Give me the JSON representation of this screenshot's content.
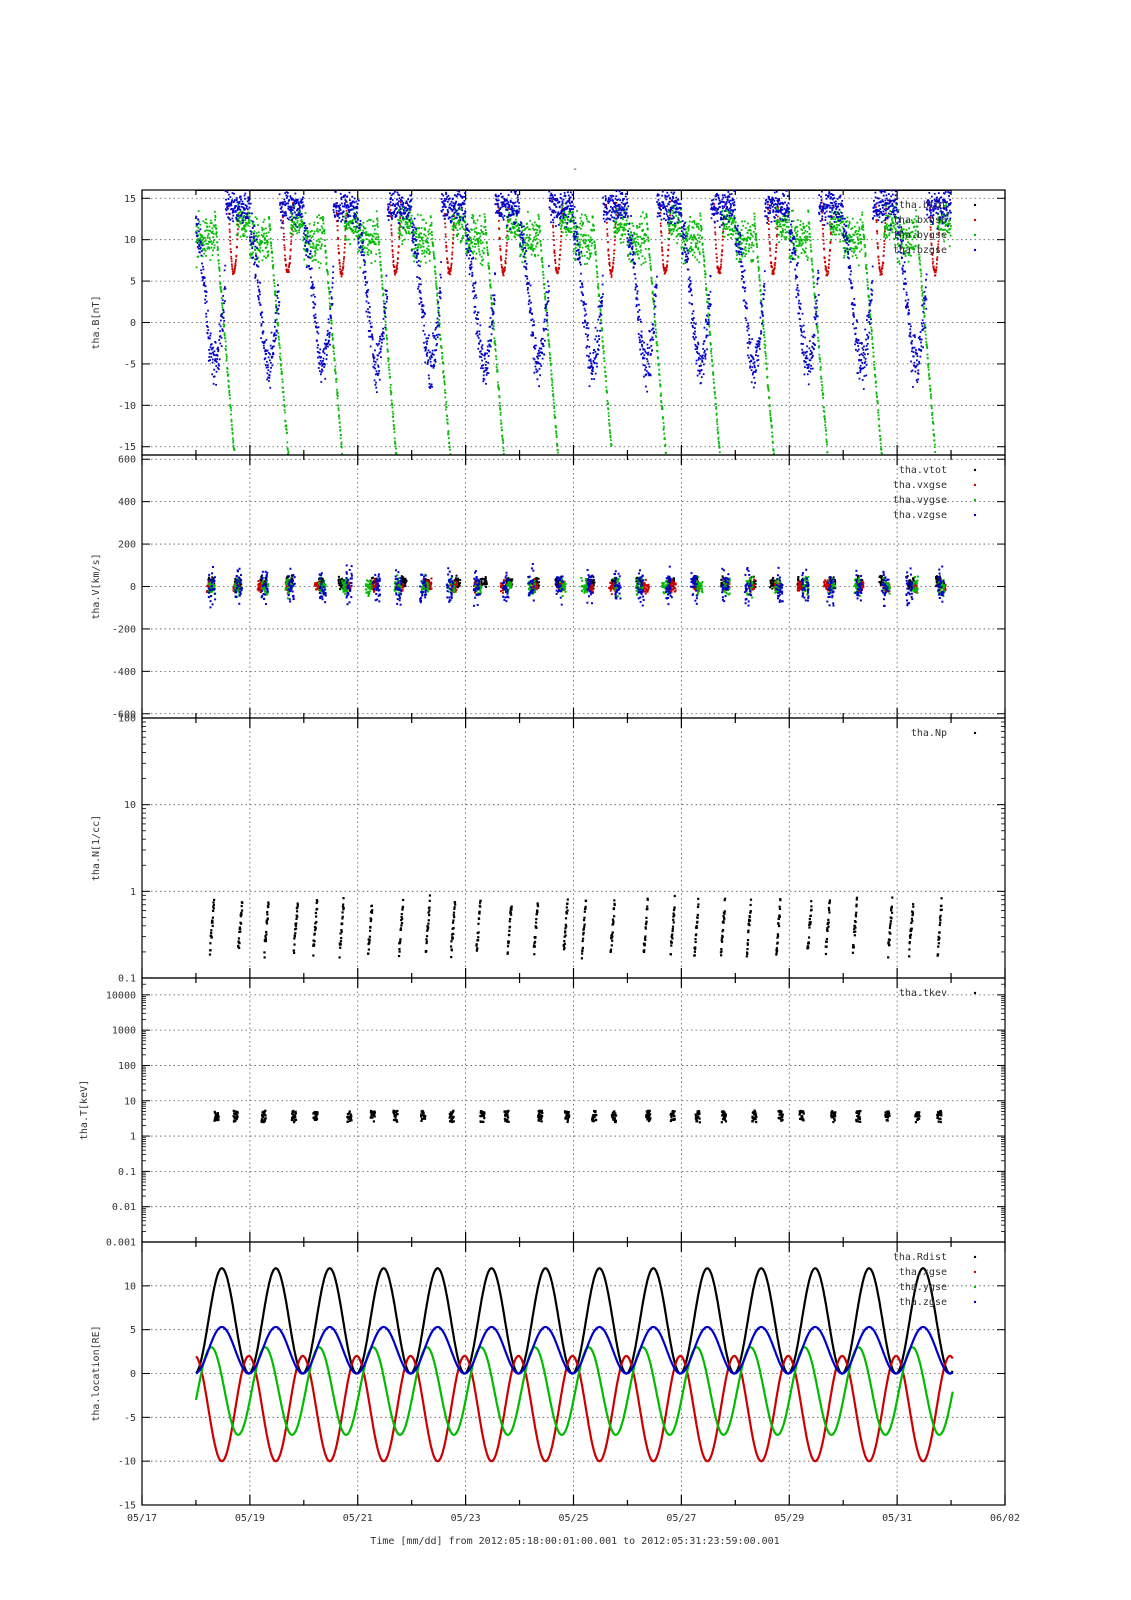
{
  "figure": {
    "top_title": "-",
    "footer": "Time [mm/dd]  from 2012:05:18:00:01:00.001  to  2012:05:31:23:59:00.001"
  },
  "colors": {
    "black": "#000000",
    "red": "#cc0000",
    "green": "#00bb00",
    "blue": "#0000cc",
    "grid": "#555555"
  },
  "chart_data": [
    {
      "type": "scatter",
      "ylabel": "tha.B[nT]",
      "ylim": [
        -16,
        16
      ],
      "yscale": "linear",
      "yticks": [
        15,
        10,
        5,
        0,
        -5,
        -10,
        -15
      ],
      "ytick_labels": [
        "15",
        "10",
        "5",
        "0",
        "-5",
        "-10",
        "-15"
      ],
      "legend_position": "top-right",
      "series": [
        {
          "name": "tha.btot",
          "color": "#000000",
          "pattern": "btot"
        },
        {
          "name": "tha.bxgse",
          "color": "#cc0000",
          "pattern": "bx"
        },
        {
          "name": "tha.bygse",
          "color": "#00bb00",
          "pattern": "by"
        },
        {
          "name": "tha.bzgse",
          "color": "#0000cc",
          "pattern": "bz"
        }
      ]
    },
    {
      "type": "scatter",
      "ylabel": "tha.V[km/s]",
      "ylim": [
        -620,
        620
      ],
      "yscale": "linear",
      "yticks": [
        600,
        400,
        200,
        0,
        -200,
        -400,
        -600
      ],
      "ytick_labels": [
        "600",
        "400",
        "200",
        "0",
        "-200",
        "-400",
        "-600"
      ],
      "legend_position": "top-right",
      "series": [
        {
          "name": "tha.vtot",
          "color": "#000000",
          "pattern": "vtot"
        },
        {
          "name": "tha.vxgse",
          "color": "#cc0000",
          "pattern": "vx"
        },
        {
          "name": "tha.vygse",
          "color": "#00bb00",
          "pattern": "vy"
        },
        {
          "name": "tha.vzgse",
          "color": "#0000cc",
          "pattern": "vz"
        }
      ]
    },
    {
      "type": "scatter",
      "ylabel": "tha.N[1/cc]",
      "ylim": [
        0.1,
        100
      ],
      "yscale": "log",
      "yticks": [
        100,
        10,
        1,
        0.1
      ],
      "ytick_labels": [
        "100",
        "10",
        "1",
        "0.1"
      ],
      "legend_position": "top-right",
      "series": [
        {
          "name": "tha.Np",
          "color": "#000000",
          "pattern": "np"
        }
      ]
    },
    {
      "type": "scatter",
      "ylabel": "tha.T[keV]",
      "ylim": [
        0.001,
        30000
      ],
      "yscale": "log",
      "yticks": [
        10000,
        1000,
        100,
        10,
        1,
        0.1,
        0.01,
        0.001
      ],
      "ytick_labels": [
        "10000",
        "1000",
        "100",
        "10",
        "1",
        "0.1",
        "0.01",
        "0.001"
      ],
      "legend_position": "top-right",
      "series": [
        {
          "name": "tha.tkev",
          "color": "#000000",
          "pattern": "tkev"
        }
      ]
    },
    {
      "type": "line",
      "ylabel": "tha.location[RE]",
      "ylim": [
        -15,
        15
      ],
      "yscale": "linear",
      "yticks": [
        10,
        5,
        0,
        -5,
        -10,
        -15
      ],
      "ytick_labels": [
        "10",
        "5",
        "0",
        "-5",
        "-10",
        "-15"
      ],
      "legend_position": "top-right",
      "orbit_period_days": 1.0,
      "series": [
        {
          "name": "tha.Rdist",
          "color": "#000000",
          "pattern": "rdist",
          "min": 0,
          "max": 12
        },
        {
          "name": "tha.xgse",
          "color": "#cc0000",
          "pattern": "x",
          "min": -10,
          "max": 2
        },
        {
          "name": "tha.ygse",
          "color": "#00bb00",
          "pattern": "y",
          "min": -7,
          "max": 3
        },
        {
          "name": "tha.zgse",
          "color": "#0000cc",
          "pattern": "z",
          "min": 0,
          "max": 5.3
        }
      ]
    }
  ],
  "x_axis": {
    "xlim": [
      "2012-05-17",
      "2012-06-02"
    ],
    "data_start": "2012-05-18 00:01",
    "data_end": "2012-05-31 23:59",
    "major_ticks": [
      "05/17",
      "05/19",
      "05/21",
      "05/23",
      "05/25",
      "05/27",
      "05/29",
      "05/31",
      "06/02"
    ]
  }
}
